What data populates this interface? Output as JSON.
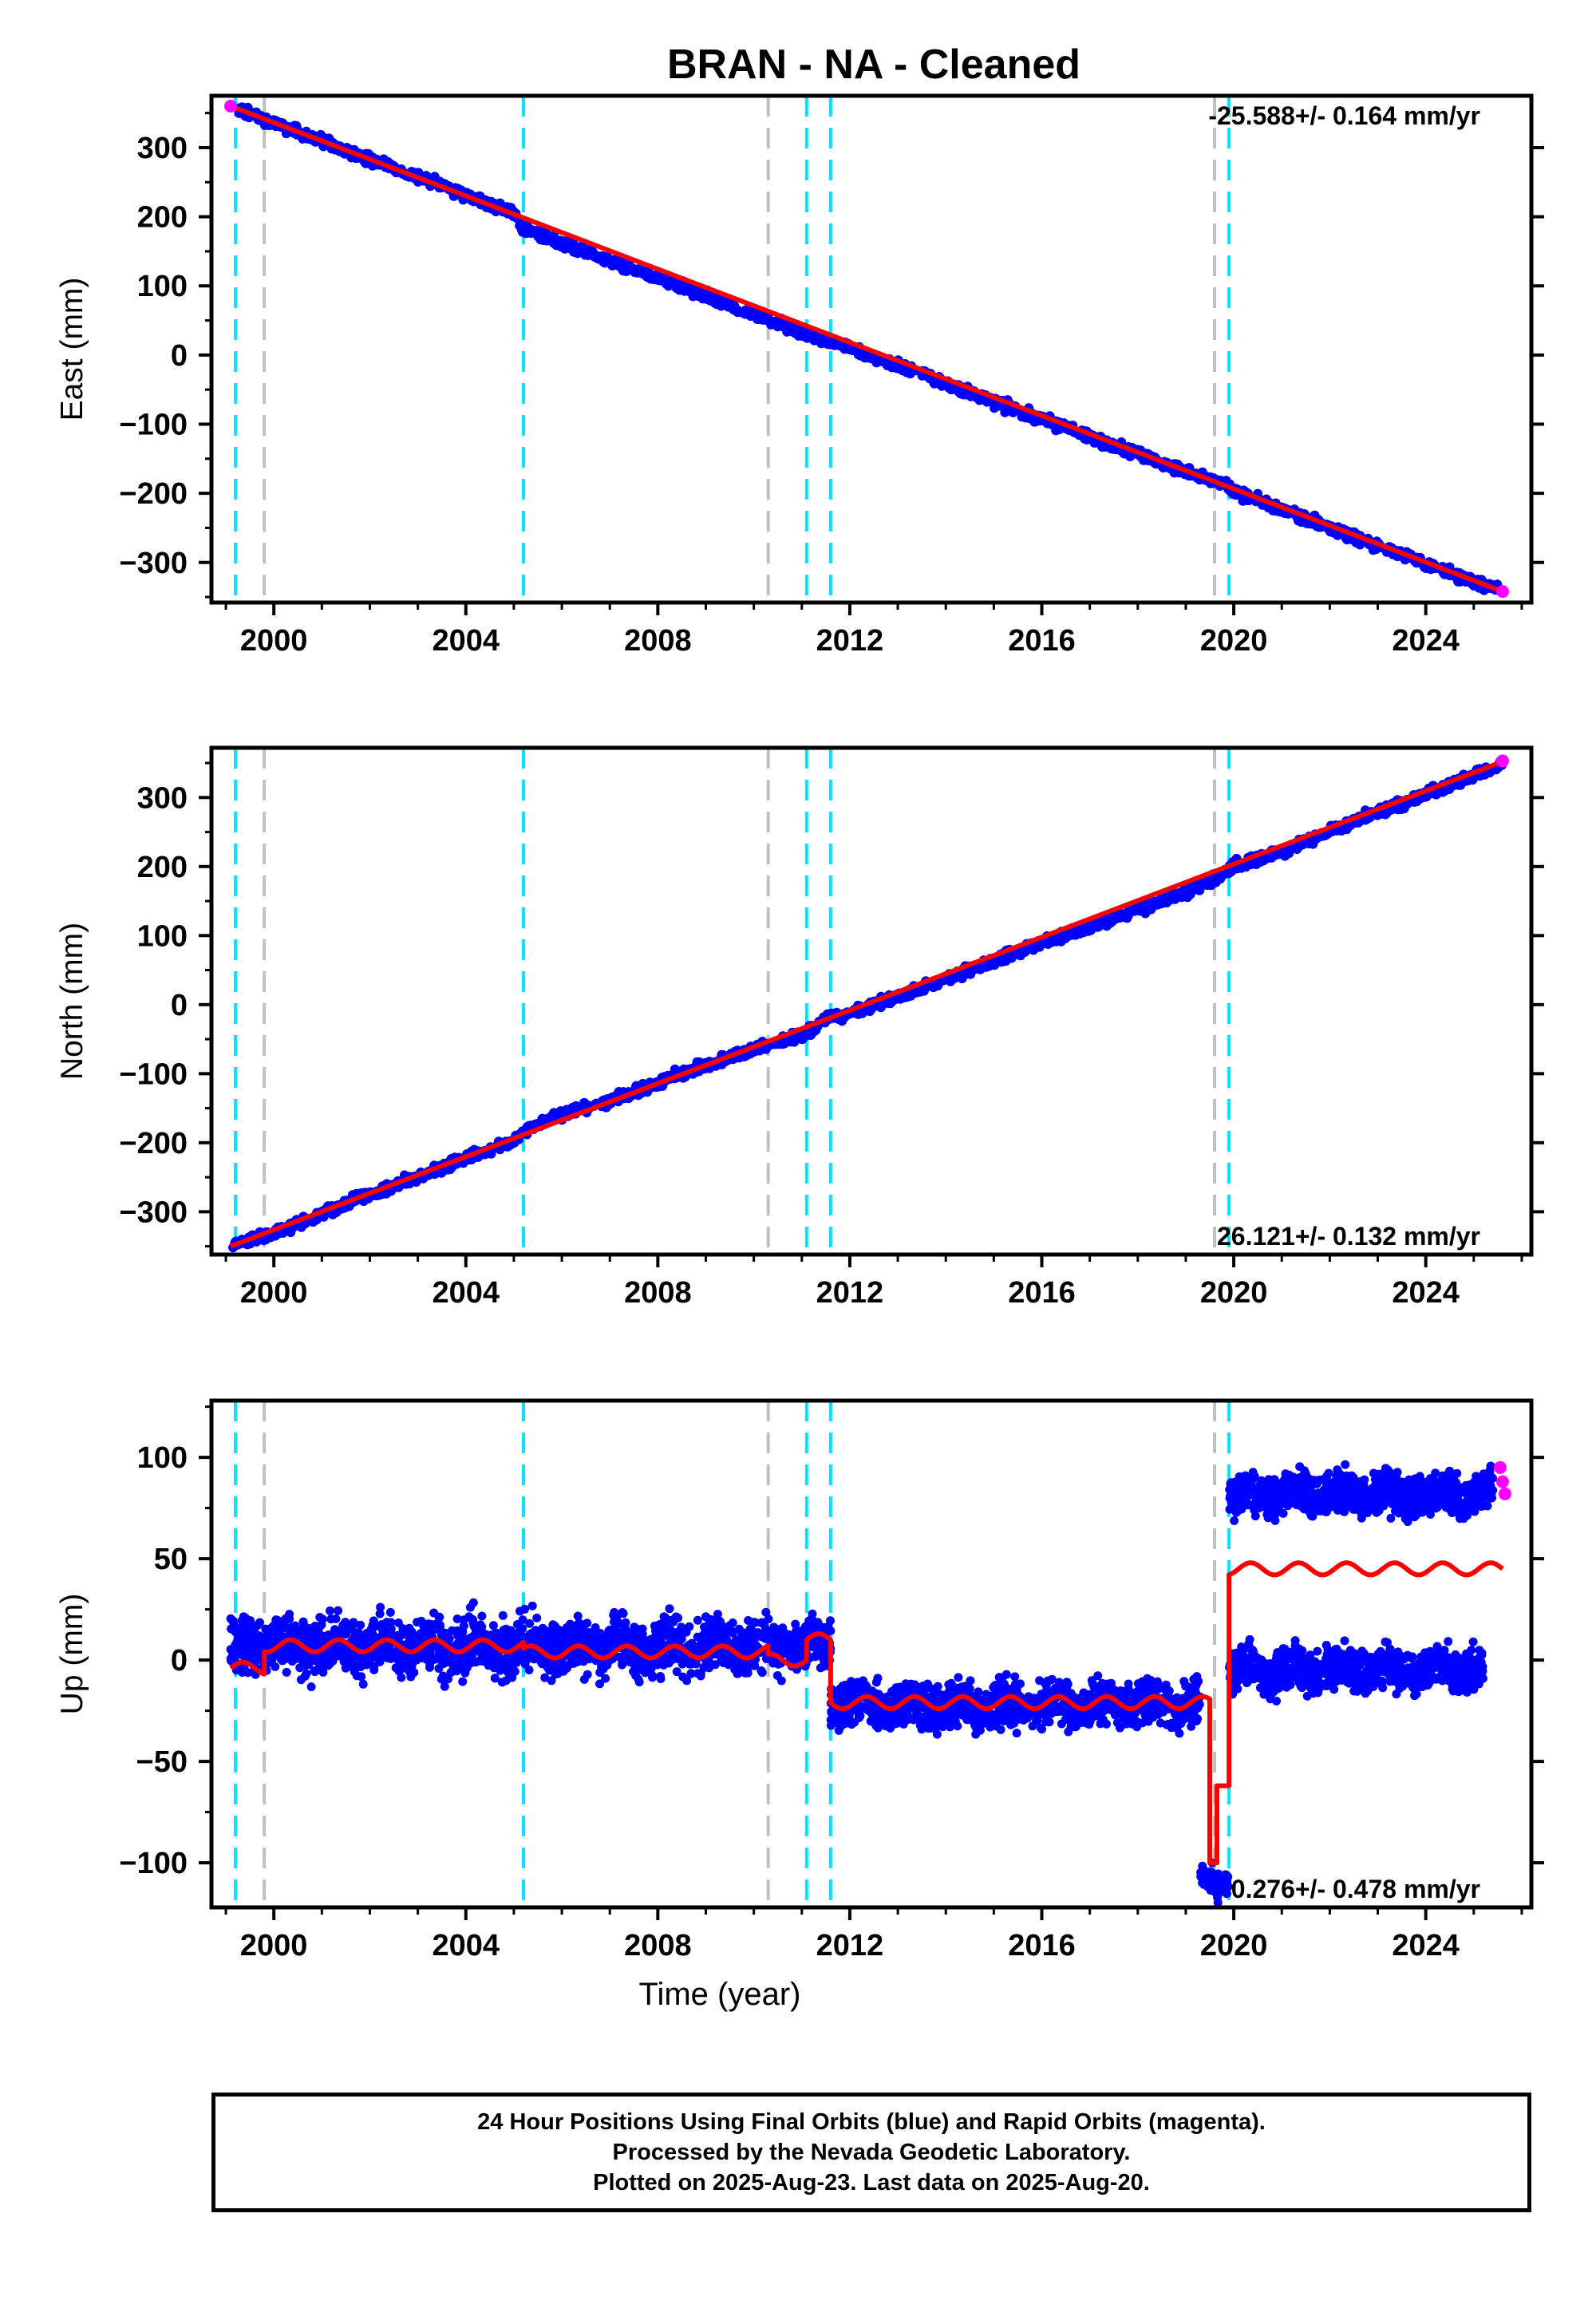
{
  "title": "BRAN  - NA - Cleaned",
  "chart_data": [
    {
      "type": "scatter",
      "panel": "east",
      "ylabel": "East (mm)",
      "xlabel": "",
      "xlim": [
        1998.7,
        2026.2
      ],
      "ylim": [
        -358,
        375
      ],
      "yticks": [
        -300,
        -200,
        -100,
        0,
        100,
        200,
        300
      ],
      "xticks": [
        2000,
        2004,
        2008,
        2012,
        2016,
        2020,
        2024
      ],
      "rate_label": "-25.588+/- 0.164 mm/yr",
      "rate_label_position": "top-right",
      "series": [
        {
          "name": "Final Orbits (blue)",
          "color": "#0000ff",
          "x": [
            1999.2,
            2000.0,
            2001.0,
            2002.0,
            2003.0,
            2004.0,
            2005.0,
            2005.2,
            2006.0,
            2007.0,
            2008.0,
            2009.0,
            2010.0,
            2010.3,
            2011.1,
            2011.6,
            2012.0,
            2013.0,
            2014.0,
            2015.0,
            2016.0,
            2017.0,
            2018.0,
            2019.0,
            2019.5,
            2019.9,
            2020.0,
            2021.0,
            2022.0,
            2023.0,
            2024.0,
            2025.0,
            2025.5
          ],
          "y": [
            357,
            335,
            310,
            283,
            258,
            232,
            205,
            183,
            160,
            136,
            112,
            86,
            60,
            53,
            30,
            20,
            10,
            -15,
            -40,
            -68,
            -93,
            -118,
            -143,
            -168,
            -180,
            -192,
            -197,
            -224,
            -250,
            -276,
            -302,
            -327,
            -340
          ]
        },
        {
          "name": "Rapid Orbits (magenta)",
          "color": "#ff00ff",
          "x": [
            1999.1,
            2025.6
          ],
          "y": [
            360,
            -342
          ]
        },
        {
          "name": "Model",
          "color": "#ff0000",
          "x": [
            1999.1,
            2025.6
          ],
          "y": [
            360,
            -342
          ]
        }
      ]
    },
    {
      "type": "scatter",
      "panel": "north",
      "ylabel": "North (mm)",
      "xlabel": "",
      "xlim": [
        1998.7,
        2026.2
      ],
      "ylim": [
        -362,
        372
      ],
      "yticks": [
        -300,
        -200,
        -100,
        0,
        100,
        200,
        300
      ],
      "xticks": [
        2000,
        2004,
        2008,
        2012,
        2016,
        2020,
        2024
      ],
      "rate_label": "26.121+/- 0.132 mm/yr",
      "rate_label_position": "bottom-right",
      "series": [
        {
          "name": "Final Orbits (blue)",
          "color": "#0000ff",
          "x": [
            1999.1,
            2000.0,
            2001.0,
            2002.0,
            2003.0,
            2004.0,
            2005.0,
            2005.2,
            2006.0,
            2007.0,
            2008.0,
            2009.0,
            2010.0,
            2010.3,
            2011.1,
            2011.6,
            2012.0,
            2013.0,
            2014.0,
            2015.0,
            2016.0,
            2017.0,
            2018.0,
            2019.0,
            2019.5,
            2019.9,
            2020.0,
            2021.0,
            2022.0,
            2023.0,
            2024.0,
            2025.0,
            2025.6
          ],
          "y": [
            -350,
            -330,
            -303,
            -275,
            -250,
            -222,
            -198,
            -182,
            -160,
            -140,
            -113,
            -88,
            -65,
            -58,
            -40,
            -18,
            -12,
            12,
            37,
            63,
            90,
            112,
            138,
            162,
            180,
            195,
            200,
            222,
            250,
            278,
            305,
            332,
            350
          ]
        },
        {
          "name": "Rapid Orbits (magenta)",
          "color": "#ff00ff",
          "x": [
            2025.6
          ],
          "y": [
            353
          ]
        },
        {
          "name": "Model",
          "color": "#ff0000",
          "x": [
            1999.1,
            2025.6
          ],
          "y": [
            -350,
            352
          ]
        }
      ]
    },
    {
      "type": "scatter",
      "panel": "up",
      "ylabel": "Up (mm)",
      "xlabel": "Time (year)",
      "xlim": [
        1998.7,
        2026.2
      ],
      "ylim": [
        -122,
        128
      ],
      "yticks": [
        -100,
        -50,
        0,
        50,
        100
      ],
      "xticks": [
        2000,
        2004,
        2008,
        2012,
        2016,
        2020,
        2024
      ],
      "rate_label": "0.276+/- 0.478 mm/yr",
      "rate_label_position": "bottom-right",
      "series": [
        {
          "name": "Final Orbits (blue)",
          "color": "#0000ff",
          "segments": [
            {
              "x": [
                1999.1,
                2011.6
              ],
              "mean": 7,
              "spread": 12
            },
            {
              "x": [
                2011.6,
                2019.3
              ],
              "mean": -22,
              "spread": 10
            },
            {
              "x": [
                2019.3,
                2019.9
              ],
              "mean": -108,
              "spread": 6
            },
            {
              "x": [
                2019.9,
                2025.4
              ],
              "mean": 82,
              "spread": 9
            },
            {
              "x": [
                2019.9,
                2025.2
              ],
              "mean": -5,
              "spread": 9
            }
          ]
        },
        {
          "name": "Rapid Orbits (magenta)",
          "color": "#ff00ff",
          "x": [
            2025.55,
            2025.6,
            2025.65
          ],
          "y": [
            95,
            88,
            82
          ]
        },
        {
          "name": "Model",
          "color": "#ff0000",
          "segments": [
            {
              "x": [
                1999.1,
                1999.8
              ],
              "mean": -4,
              "amp": 3
            },
            {
              "x": [
                1999.8,
                2005.2
              ],
              "mean": 7,
              "amp": 3
            },
            {
              "x": [
                2005.2,
                2010.3
              ],
              "mean": 4,
              "amp": 3
            },
            {
              "x": [
                2010.3,
                2011.1
              ],
              "mean": 0,
              "amp": 3
            },
            {
              "x": [
                2011.1,
                2011.6
              ],
              "mean": 10,
              "amp": 3
            },
            {
              "x": [
                2011.6,
                2019.5
              ],
              "mean": -21,
              "amp": 3
            },
            {
              "x": [
                2019.5,
                2019.65
              ],
              "mean": -100,
              "amp": 0
            },
            {
              "x": [
                2019.65,
                2019.9
              ],
              "mean": -62,
              "amp": 0
            },
            {
              "x": [
                2019.9,
                2025.6
              ],
              "mean": 45,
              "amp": 3
            }
          ]
        }
      ]
    }
  ],
  "steps": {
    "cyan": [
      1999.2,
      2005.2,
      2011.1,
      2011.6,
      2019.9
    ],
    "gray": [
      1999.8,
      2010.3,
      2019.6
    ],
    "cyan_color": "#00e5ff",
    "gray_color": "#c0c0c0"
  },
  "footer": {
    "line1": "24 Hour Positions Using Final Orbits (blue) and Rapid Orbits (magenta).",
    "line2": "Processed by the Nevada Geodetic Laboratory.",
    "line3": "Plotted on 2025-Aug-23. Last data on 2025-Aug-20."
  }
}
